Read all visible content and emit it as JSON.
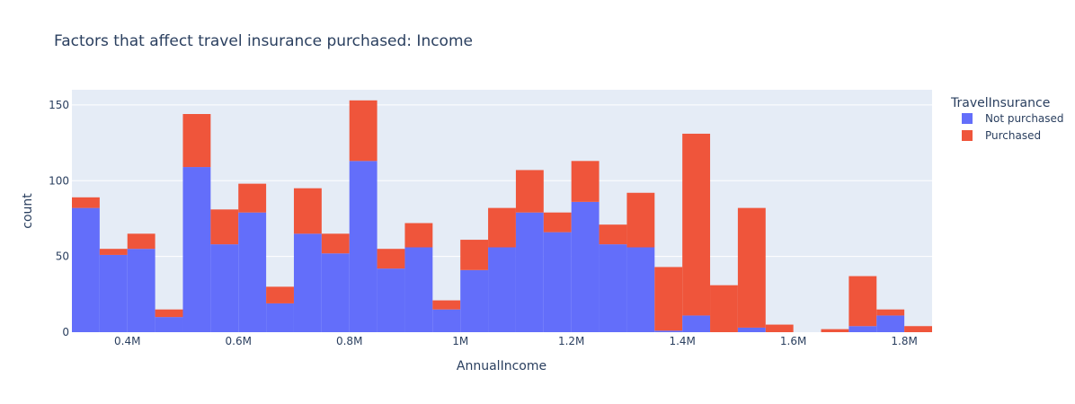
{
  "chart_data": {
    "type": "bar",
    "mode": "stacked histogram",
    "title": "Factors that affect travel insurance purchased: Income",
    "xlabel": "AnnualIncome",
    "ylabel": "count",
    "bin_width": 50000,
    "xlim": [
      300000,
      1850000
    ],
    "ylim": [
      0,
      160
    ],
    "x_ticks": [
      {
        "value": 400000,
        "label": "0.4M"
      },
      {
        "value": 600000,
        "label": "0.6M"
      },
      {
        "value": 800000,
        "label": "0.8M"
      },
      {
        "value": 1000000,
        "label": "1M"
      },
      {
        "value": 1200000,
        "label": "1.2M"
      },
      {
        "value": 1400000,
        "label": "1.4M"
      },
      {
        "value": 1600000,
        "label": "1.6M"
      },
      {
        "value": 1800000,
        "label": "1.8M"
      }
    ],
    "y_ticks": [
      0,
      50,
      100,
      150
    ],
    "bin_starts": [
      300000,
      350000,
      400000,
      450000,
      500000,
      550000,
      600000,
      650000,
      700000,
      750000,
      800000,
      850000,
      900000,
      950000,
      1000000,
      1050000,
      1100000,
      1150000,
      1200000,
      1250000,
      1300000,
      1350000,
      1400000,
      1450000,
      1500000,
      1550000,
      1600000,
      1650000,
      1700000,
      1750000,
      1800000
    ],
    "series": [
      {
        "name": "Not purchased",
        "color": "#636efa",
        "values": [
          82,
          51,
          55,
          10,
          109,
          58,
          79,
          19,
          65,
          52,
          113,
          42,
          56,
          15,
          41,
          56,
          79,
          66,
          86,
          58,
          56,
          1,
          11,
          0,
          3,
          0,
          0,
          0,
          4,
          11,
          0
        ]
      },
      {
        "name": "Purchased",
        "color": "#ef553b",
        "values": [
          7,
          4,
          10,
          5,
          35,
          23,
          19,
          11,
          30,
          13,
          40,
          13,
          16,
          6,
          20,
          26,
          28,
          13,
          27,
          13,
          36,
          42,
          120,
          31,
          79,
          5,
          0,
          2,
          33,
          4,
          4
        ]
      }
    ],
    "legend": {
      "title": "TravelInsurance",
      "position": "top-right"
    },
    "grid": true,
    "plot_bgcolor": "#e5ecf6"
  }
}
